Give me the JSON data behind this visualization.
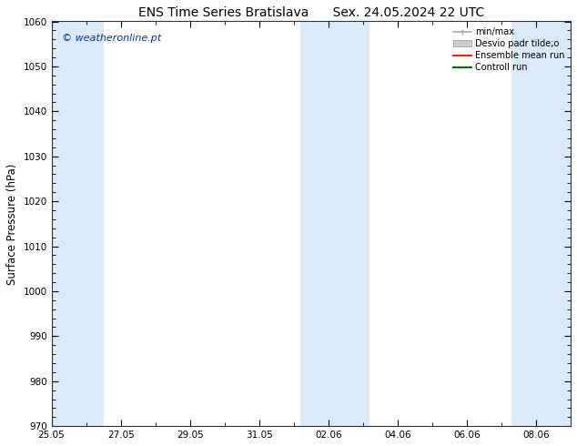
{
  "title_left": "ENS Time Series Bratislava",
  "title_right": "Sex. 24.05.2024 22 UTC",
  "ylabel": "Surface Pressure (hPa)",
  "ylim": [
    970,
    1060
  ],
  "yticks": [
    970,
    980,
    990,
    1000,
    1010,
    1020,
    1030,
    1040,
    1050,
    1060
  ],
  "xtick_labels": [
    "25.05",
    "27.05",
    "29.05",
    "31.05",
    "02.06",
    "04.06",
    "06.06",
    "08.06"
  ],
  "xtick_positions": [
    0,
    2,
    4,
    6,
    8,
    10,
    12,
    14
  ],
  "xlim": [
    0,
    15
  ],
  "shaded_bands": [
    {
      "x_start": 0.0,
      "x_end": 1.5
    },
    {
      "x_start": 7.2,
      "x_end": 9.2
    },
    {
      "x_start": 13.3,
      "x_end": 15.0
    }
  ],
  "band_color": "#daeaf8",
  "background_color": "#ffffff",
  "watermark_text": "© weatheronline.pt",
  "watermark_color": "#0033cc",
  "legend_items": [
    {
      "label": "min/max",
      "color": "#aaaaaa",
      "style": "errorbar"
    },
    {
      "label": "Desvio padr tilde;o",
      "color": "#cccccc",
      "style": "band"
    },
    {
      "label": "Ensemble mean run",
      "color": "#ff2200",
      "style": "line"
    },
    {
      "label": "Controll run",
      "color": "#007700",
      "style": "line"
    }
  ],
  "title_fontsize": 10,
  "tick_fontsize": 7.5,
  "ylabel_fontsize": 8.5,
  "watermark_fontsize": 8,
  "legend_fontsize": 7
}
